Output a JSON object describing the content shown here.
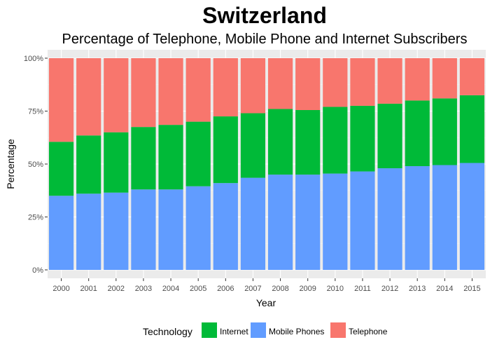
{
  "chart_data": {
    "type": "bar",
    "stacked": true,
    "title": "Switzerland",
    "subtitle": "Percentage of Telephone, Mobile Phone and Internet Subscribers",
    "xlabel": "Year",
    "ylabel": "Percentage",
    "ylim": [
      0,
      100
    ],
    "y_ticks": [
      "0%",
      "25%",
      "50%",
      "75%",
      "100%"
    ],
    "grid": true,
    "legend_position": "bottom",
    "legend_title": "Technology",
    "categories": [
      "2000",
      "2001",
      "2002",
      "2003",
      "2004",
      "2005",
      "2006",
      "2007",
      "2008",
      "2009",
      "2010",
      "2011",
      "2012",
      "2013",
      "2014",
      "2015"
    ],
    "series": [
      {
        "name": "Mobile Phones",
        "color": "#619CFF",
        "values": [
          35.0,
          36.0,
          36.5,
          38.0,
          38.0,
          39.5,
          41.0,
          43.5,
          45.0,
          45.0,
          45.5,
          46.5,
          48.0,
          49.0,
          49.5,
          50.5
        ]
      },
      {
        "name": "Internet",
        "color": "#00BA38",
        "values": [
          25.5,
          27.5,
          28.5,
          29.5,
          30.5,
          30.5,
          31.5,
          30.5,
          31.0,
          30.5,
          31.5,
          31.0,
          30.5,
          31.0,
          31.5,
          32.0
        ]
      },
      {
        "name": "Telephone",
        "color": "#F8766D",
        "values": [
          39.5,
          36.5,
          35.0,
          32.5,
          31.5,
          30.0,
          27.5,
          26.0,
          24.0,
          24.5,
          23.0,
          22.5,
          21.5,
          20.0,
          19.0,
          17.5
        ]
      }
    ],
    "legend_order": [
      "Internet",
      "Mobile Phones",
      "Telephone"
    ]
  }
}
